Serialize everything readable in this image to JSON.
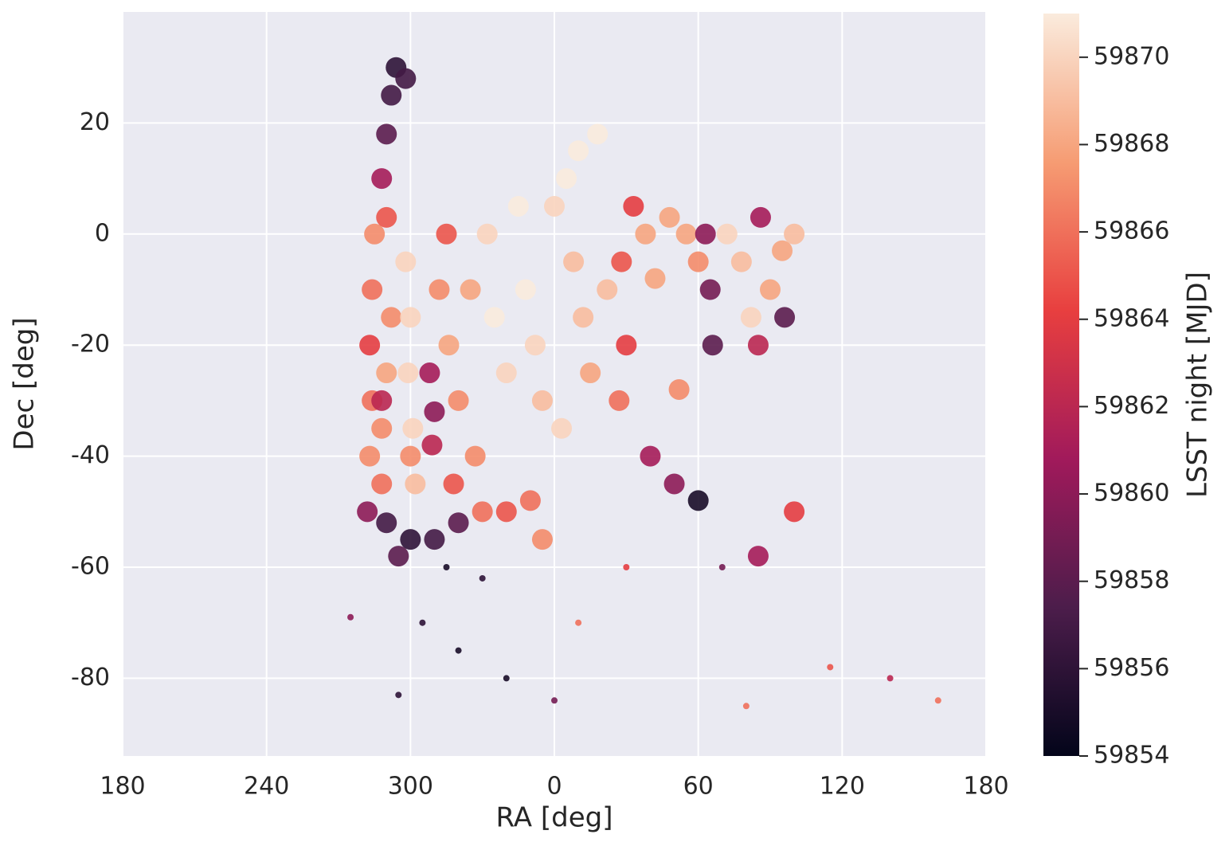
{
  "chart_data": {
    "type": "scatter",
    "xlabel": "RA [deg]",
    "ylabel": "Dec [deg]",
    "clabel": "LSST night [MJD]",
    "xlim": [
      -180,
      180
    ],
    "xticks": [
      {
        "value": -180,
        "label": "180"
      },
      {
        "value": -120,
        "label": "240"
      },
      {
        "value": -60,
        "label": "300"
      },
      0,
      60,
      120,
      180
    ],
    "ylim": [
      -94,
      40
    ],
    "yticks": [
      -80,
      -60,
      -40,
      -20,
      0,
      20
    ],
    "grid": true,
    "clim": [
      59854,
      59871
    ],
    "cticks": [
      59854,
      59856,
      59858,
      59860,
      59862,
      59864,
      59866,
      59868,
      59870
    ],
    "colormap": [
      "#03051a",
      "#4c1d4b",
      "#a11a5b",
      "#e83f3f",
      "#f69c73",
      "#faebdd"
    ],
    "x": [
      -75,
      -76,
      -77,
      -76,
      -77,
      -72,
      -70,
      -68,
      -70,
      -72,
      -62,
      -60,
      -61,
      -59,
      -58,
      -52,
      -50,
      -51,
      -48,
      -45,
      -44,
      -40,
      -42,
      -35,
      -33,
      -28,
      -25,
      -20,
      -15,
      -12,
      -8,
      -5,
      0,
      5,
      10,
      18,
      8,
      12,
      3,
      15,
      22,
      28,
      30,
      27,
      33,
      38,
      42,
      48,
      55,
      52,
      60,
      63,
      65,
      66,
      72,
      78,
      82,
      86,
      90,
      95,
      100,
      96,
      85,
      -78,
      -70,
      -60,
      -50,
      -40,
      -30,
      -20,
      -10,
      -5,
      -45,
      -30,
      -65,
      -72,
      -72,
      -70,
      -68,
      -66,
      -62,
      -55,
      -40,
      -20,
      10,
      30,
      40,
      50,
      60,
      70,
      85,
      100,
      115,
      140,
      160,
      -65,
      0,
      80,
      -85,
      -60
    ],
    "values": [
      0,
      -10,
      -20,
      -30,
      -40,
      -45,
      3,
      -15,
      -25,
      -35,
      -5,
      -15,
      -25,
      -35,
      -45,
      -25,
      -32,
      -38,
      -10,
      0,
      -20,
      -30,
      -45,
      -10,
      -40,
      0,
      -15,
      -25,
      5,
      -10,
      -20,
      -30,
      5,
      10,
      15,
      18,
      -5,
      -15,
      -35,
      -25,
      -10,
      -5,
      -20,
      -30,
      5,
      0,
      -8,
      3,
      0,
      -28,
      -5,
      0,
      -10,
      -20,
      0,
      -5,
      -15,
      3,
      -10,
      -3,
      0,
      -15,
      -20,
      -50,
      -52,
      -55,
      -55,
      -52,
      -50,
      -50,
      -48,
      -55,
      -60,
      -62,
      -58,
      -30,
      10,
      18,
      25,
      30,
      28,
      -70,
      -75,
      -80,
      -70,
      -60,
      -40,
      -45,
      -48,
      -60,
      -58,
      -50,
      -78,
      -80,
      -84,
      -83,
      -84,
      -85,
      -69,
      -40
    ],
    "c": [
      59867,
      59866,
      59864,
      59866,
      59867,
      59866,
      59865,
      59867,
      59868,
      59867,
      59870,
      59870,
      59870,
      59870,
      59869,
      59861,
      59860,
      59862,
      59867,
      59865,
      59868,
      59867,
      59865,
      59868,
      59867,
      59870,
      59871,
      59870,
      59871,
      59871,
      59870,
      59869,
      59870,
      59871,
      59871,
      59871,
      59869,
      59869,
      59870,
      59868,
      59869,
      59865,
      59864,
      59866,
      59864,
      59868,
      59868,
      59868,
      59868,
      59867,
      59867,
      59860,
      59859,
      59858,
      59870,
      59869,
      59870,
      59861,
      59868,
      59868,
      59869,
      59858,
      59862,
      59860,
      59857,
      59856,
      59857,
      59858,
      59866,
      59865,
      59866,
      59867,
      59855,
      59856,
      59858,
      59862,
      59861,
      59858,
      59857,
      59856,
      59857,
      59856,
      59855,
      59855,
      59866,
      59864,
      59861,
      59860,
      59855,
      59859,
      59861,
      59864,
      59865,
      59862,
      59866,
      59856,
      59859,
      59866,
      59860,
      59867
    ]
  }
}
